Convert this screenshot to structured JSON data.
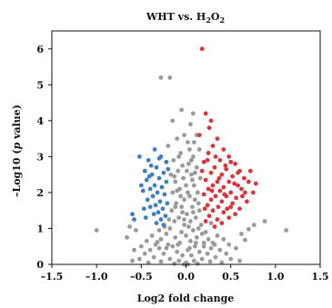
{
  "chart_data": {
    "type": "scatter",
    "title": {
      "prefix": "WHT vs. H",
      "sub1": "2",
      "mid": "O",
      "sub2": "2"
    },
    "xlabel": "Log2 fold change",
    "ylabel": {
      "prefix": "–Log10 (",
      "italic": "p",
      "suffix": " value)"
    },
    "xlim": [
      -1.5,
      1.5
    ],
    "ylim": [
      0,
      6.5
    ],
    "x_ticks": [
      -1.5,
      -1.0,
      -0.5,
      0.0,
      0.5,
      1.0,
      1.5
    ],
    "x_tick_labels": [
      "–1.5",
      "–1.0",
      "–0.5",
      "0.0",
      "0.5",
      "1.0",
      "1.5"
    ],
    "y_ticks": [
      0,
      1,
      2,
      3,
      4,
      5,
      6
    ],
    "y_tick_labels": [
      "0",
      "1",
      "2",
      "3",
      "4",
      "5",
      "6"
    ],
    "grid": false,
    "legend": false,
    "colors": {
      "up": "#d9353b",
      "down": "#3d7fbf",
      "not_significant": "#9a9a9a"
    },
    "series": [
      {
        "group": "up",
        "points": [
          [
            0.18,
            6.0
          ],
          [
            0.22,
            4.2
          ],
          [
            0.28,
            4.0
          ],
          [
            0.15,
            3.6
          ],
          [
            0.35,
            3.5
          ],
          [
            0.3,
            3.3
          ],
          [
            0.42,
            3.2
          ],
          [
            0.25,
            3.1
          ],
          [
            0.48,
            3.0
          ],
          [
            0.38,
            2.9
          ],
          [
            0.55,
            2.8
          ],
          [
            0.2,
            2.85
          ],
          [
            0.32,
            2.7
          ],
          [
            0.45,
            2.65
          ],
          [
            0.6,
            2.6
          ],
          [
            0.28,
            2.55
          ],
          [
            0.4,
            2.5
          ],
          [
            0.52,
            2.45
          ],
          [
            0.65,
            2.4
          ],
          [
            0.22,
            2.35
          ],
          [
            0.35,
            2.3
          ],
          [
            0.48,
            2.3
          ],
          [
            0.7,
            2.3
          ],
          [
            0.78,
            2.25
          ],
          [
            0.58,
            2.2
          ],
          [
            0.3,
            2.2
          ],
          [
            0.42,
            2.15
          ],
          [
            0.25,
            2.1
          ],
          [
            0.62,
            2.1
          ],
          [
            0.38,
            2.05
          ],
          [
            0.5,
            2.0
          ],
          [
            0.75,
            2.0
          ],
          [
            0.2,
            1.95
          ],
          [
            0.45,
            1.9
          ],
          [
            0.33,
            1.9
          ],
          [
            0.56,
            1.85
          ],
          [
            0.28,
            1.8
          ],
          [
            0.4,
            1.75
          ],
          [
            0.68,
            1.75
          ],
          [
            0.52,
            1.7
          ],
          [
            0.24,
            1.65
          ],
          [
            0.36,
            1.6
          ],
          [
            0.46,
            1.55
          ],
          [
            0.6,
            1.55
          ],
          [
            0.3,
            1.5
          ],
          [
            0.42,
            1.45
          ],
          [
            0.55,
            1.4
          ],
          [
            0.26,
            1.35
          ],
          [
            0.48,
            1.3
          ],
          [
            0.35,
            1.25
          ],
          [
            0.22,
            1.2
          ],
          [
            0.4,
            1.15
          ],
          [
            0.32,
            1.05
          ],
          [
            0.26,
            3.8
          ],
          [
            0.33,
            3.0
          ],
          [
            0.44,
            2.75
          ],
          [
            0.58,
            2.55
          ],
          [
            0.66,
            2.0
          ],
          [
            0.72,
            2.6
          ],
          [
            0.5,
            2.85
          ],
          [
            0.18,
            2.6
          ],
          [
            0.24,
            2.9
          ],
          [
            0.54,
            2.25
          ],
          [
            0.37,
            2.4
          ],
          [
            0.29,
            2.05
          ],
          [
            0.43,
            1.95
          ],
          [
            0.63,
            1.9
          ],
          [
            0.21,
            1.55
          ],
          [
            0.5,
            1.6
          ]
        ]
      },
      {
        "group": "down",
        "points": [
          [
            -0.52,
            3.0
          ],
          [
            -0.35,
            3.2
          ],
          [
            -0.28,
            3.0
          ],
          [
            -0.42,
            2.9
          ],
          [
            -0.22,
            2.85
          ],
          [
            -0.33,
            2.7
          ],
          [
            -0.46,
            2.6
          ],
          [
            -0.25,
            2.55
          ],
          [
            -0.38,
            2.5
          ],
          [
            -0.3,
            2.4
          ],
          [
            -0.44,
            2.35
          ],
          [
            -0.22,
            2.3
          ],
          [
            -0.35,
            2.2
          ],
          [
            -0.27,
            2.15
          ],
          [
            -0.4,
            2.1
          ],
          [
            -0.48,
            2.05
          ],
          [
            -0.32,
            2.0
          ],
          [
            -0.24,
            1.95
          ],
          [
            -0.37,
            1.9
          ],
          [
            -0.43,
            1.8
          ],
          [
            -0.29,
            1.75
          ],
          [
            -0.21,
            1.7
          ],
          [
            -0.34,
            1.65
          ],
          [
            -0.4,
            1.6
          ],
          [
            -0.26,
            1.55
          ],
          [
            -0.31,
            1.45
          ],
          [
            -0.36,
            1.4
          ],
          [
            -0.23,
            1.35
          ],
          [
            -0.45,
            1.3
          ],
          [
            -0.28,
            1.25
          ],
          [
            -0.33,
            1.15
          ],
          [
            -0.6,
            1.4
          ],
          [
            -0.58,
            1.25
          ],
          [
            -0.25,
            1.1
          ],
          [
            -0.39,
            2.75
          ],
          [
            -0.5,
            2.2
          ],
          [
            -0.2,
            2.65
          ],
          [
            -0.47,
            1.55
          ],
          [
            -0.3,
            2.95
          ],
          [
            -0.41,
            2.45
          ]
        ]
      },
      {
        "group": "not_significant",
        "points": [
          [
            -0.28,
            5.2
          ],
          [
            -0.18,
            5.2
          ],
          [
            -0.05,
            4.3
          ],
          [
            0.08,
            4.2
          ],
          [
            -0.15,
            4.0
          ],
          [
            0.05,
            3.9
          ],
          [
            0.12,
            3.6
          ],
          [
            -0.1,
            3.5
          ],
          [
            0.02,
            3.4
          ],
          [
            -0.2,
            3.3
          ],
          [
            0.15,
            3.2
          ],
          [
            -0.06,
            3.1
          ],
          [
            0.08,
            3.0
          ],
          [
            -0.14,
            2.9
          ],
          [
            0.03,
            2.8
          ],
          [
            0.12,
            2.7
          ],
          [
            -0.09,
            2.6
          ],
          [
            -0.17,
            2.5
          ],
          [
            0.06,
            2.5
          ],
          [
            0.16,
            2.4
          ],
          [
            -0.03,
            2.4
          ],
          [
            -0.12,
            2.3
          ],
          [
            0.09,
            2.2
          ],
          [
            0.0,
            2.2
          ],
          [
            -0.07,
            2.1
          ],
          [
            0.13,
            2.0
          ],
          [
            -0.15,
            2.0
          ],
          [
            0.04,
            1.9
          ],
          [
            -0.02,
            1.8
          ],
          [
            0.1,
            1.8
          ],
          [
            -0.11,
            1.7
          ],
          [
            0.07,
            1.6
          ],
          [
            -0.05,
            1.6
          ],
          [
            0.15,
            1.5
          ],
          [
            -0.16,
            1.5
          ],
          [
            0.01,
            1.4
          ],
          [
            -0.08,
            1.3
          ],
          [
            0.11,
            1.3
          ],
          [
            0.05,
            1.2
          ],
          [
            -0.13,
            1.2
          ],
          [
            -0.02,
            1.1
          ],
          [
            0.14,
            1.0
          ],
          [
            -0.18,
            1.0
          ],
          [
            0.08,
            0.95
          ],
          [
            -0.05,
            0.9
          ],
          [
            0.18,
            0.85
          ],
          [
            -0.22,
            0.85
          ],
          [
            0.0,
            0.8
          ],
          [
            0.12,
            0.75
          ],
          [
            -0.12,
            0.75
          ],
          [
            0.25,
            0.7
          ],
          [
            -0.28,
            0.7
          ],
          [
            0.05,
            0.65
          ],
          [
            -0.07,
            0.6
          ],
          [
            0.2,
            0.6
          ],
          [
            -0.2,
            0.55
          ],
          [
            0.32,
            0.55
          ],
          [
            -0.34,
            0.55
          ],
          [
            0.1,
            0.5
          ],
          [
            -0.15,
            0.5
          ],
          [
            0.28,
            0.45
          ],
          [
            -0.3,
            0.45
          ],
          [
            0.02,
            0.4
          ],
          [
            0.38,
            0.4
          ],
          [
            -0.4,
            0.4
          ],
          [
            0.15,
            0.35
          ],
          [
            -0.1,
            0.35
          ],
          [
            0.24,
            0.3
          ],
          [
            -0.25,
            0.3
          ],
          [
            0.45,
            0.3
          ],
          [
            -0.46,
            0.3
          ],
          [
            0.06,
            0.25
          ],
          [
            -0.04,
            0.25
          ],
          [
            0.33,
            0.2
          ],
          [
            -0.36,
            0.2
          ],
          [
            0.18,
            0.15
          ],
          [
            -0.18,
            0.15
          ],
          [
            0.5,
            0.15
          ],
          [
            -0.52,
            0.15
          ],
          [
            0.09,
            0.1
          ],
          [
            -0.08,
            0.1
          ],
          [
            0.27,
            0.08
          ],
          [
            -0.28,
            0.08
          ],
          [
            0.4,
            0.05
          ],
          [
            -0.42,
            0.05
          ],
          [
            0.0,
            0.05
          ],
          [
            0.6,
            0.1
          ],
          [
            -0.6,
            0.1
          ],
          [
            0.13,
            0.02
          ],
          [
            -0.13,
            0.02
          ],
          [
            0.02,
            0.0
          ],
          [
            -0.02,
            0.0
          ],
          [
            0.22,
            0.9
          ],
          [
            -0.24,
            1.05
          ],
          [
            0.28,
            1.15
          ],
          [
            -0.3,
            0.95
          ],
          [
            0.35,
            0.8
          ],
          [
            -0.38,
            0.8
          ],
          [
            0.42,
            0.7
          ],
          [
            -0.44,
            0.65
          ],
          [
            0.3,
            0.6
          ],
          [
            -0.32,
            0.62
          ],
          [
            0.17,
            1.1
          ],
          [
            -0.19,
            1.25
          ],
          [
            0.2,
            0.5
          ],
          [
            -0.22,
            0.45
          ],
          [
            0.48,
            0.55
          ],
          [
            -0.5,
            0.5
          ],
          [
            0.56,
            0.45
          ],
          [
            -0.58,
            0.4
          ],
          [
            0.03,
            1.05
          ],
          [
            -0.04,
            1.45
          ],
          [
            0.06,
            2.9
          ],
          [
            -0.04,
            2.75
          ],
          [
            0.1,
            2.55
          ],
          [
            -0.13,
            2.45
          ],
          [
            0.01,
            2.6
          ],
          [
            0.07,
            2.35
          ],
          [
            -0.1,
            2.05
          ],
          [
            0.04,
            3.2
          ],
          [
            -0.02,
            3.6
          ],
          [
            0.09,
            3.4
          ],
          [
            -0.08,
            3.0
          ],
          [
            0.02,
            2.0
          ],
          [
            -0.06,
            1.9
          ],
          [
            0.14,
            1.7
          ],
          [
            -0.12,
            1.6
          ],
          [
            0.08,
            1.45
          ],
          [
            -0.02,
            1.25
          ],
          [
            0.04,
            0.45
          ],
          [
            -0.09,
            0.55
          ],
          [
            0.11,
            0.6
          ],
          [
            -1.0,
            0.95
          ],
          [
            1.12,
            0.95
          ],
          [
            0.88,
            1.2
          ],
          [
            0.7,
            0.98
          ],
          [
            -0.63,
            1.05
          ],
          [
            0.76,
            1.1
          ],
          [
            -0.56,
            0.95
          ],
          [
            0.62,
            0.85
          ],
          [
            -0.66,
            0.75
          ],
          [
            0.66,
            0.68
          ]
        ]
      }
    ]
  }
}
